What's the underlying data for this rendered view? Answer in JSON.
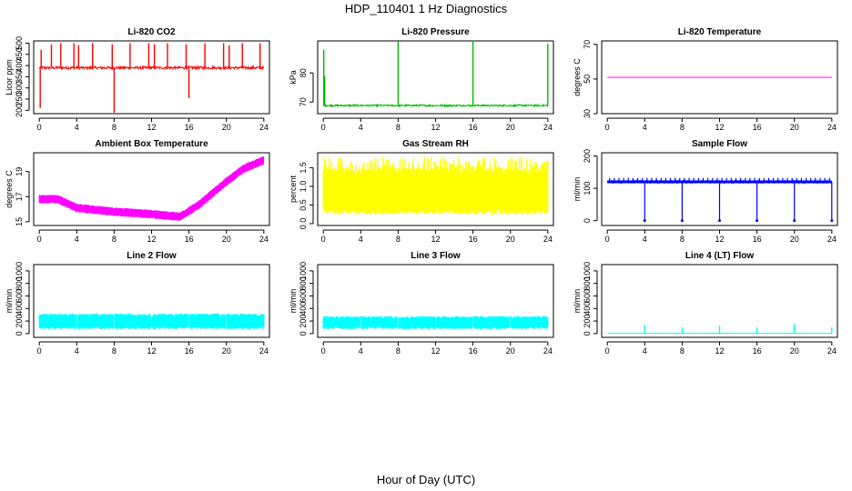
{
  "figure": {
    "title": "HDP_110401  1 Hz Diagnostics",
    "xlabel": "Hour of Day (UTC)"
  },
  "chart_data": [
    {
      "type": "line",
      "title": "Li-820 CO2",
      "ylabel": "Licor ppm",
      "color": "#ff0000",
      "x_ticks": [
        0,
        4,
        8,
        12,
        16,
        20,
        24
      ],
      "y_ticks": [
        200,
        250,
        300,
        350,
        400,
        450,
        500
      ],
      "ylim": [
        185,
        510
      ],
      "baseline": 390,
      "noise": 6,
      "spikes": [
        {
          "x": 0.1,
          "y": 210
        },
        {
          "x": 0.2,
          "y": 470
        },
        {
          "x": 1.3,
          "y": 495
        },
        {
          "x": 2.3,
          "y": 500
        },
        {
          "x": 3.7,
          "y": 500
        },
        {
          "x": 4.2,
          "y": 490
        },
        {
          "x": 5.7,
          "y": 500
        },
        {
          "x": 7.8,
          "y": 495
        },
        {
          "x": 8.0,
          "y": 190
        },
        {
          "x": 9.7,
          "y": 500
        },
        {
          "x": 11.7,
          "y": 500
        },
        {
          "x": 12.3,
          "y": 495
        },
        {
          "x": 13.7,
          "y": 500
        },
        {
          "x": 15.7,
          "y": 495
        },
        {
          "x": 16.0,
          "y": 255
        },
        {
          "x": 17.7,
          "y": 500
        },
        {
          "x": 19.7,
          "y": 500
        },
        {
          "x": 20.3,
          "y": 490
        },
        {
          "x": 21.7,
          "y": 500
        },
        {
          "x": 23.6,
          "y": 500
        }
      ]
    },
    {
      "type": "line",
      "title": "Li-820 Pressure",
      "ylabel": "kPa",
      "color": "#00bb00",
      "x_ticks": [
        0,
        4,
        8,
        12,
        16,
        20,
        24
      ],
      "y_ticks": [
        70,
        80
      ],
      "ylim": [
        66,
        91
      ],
      "baseline": 68.8,
      "noise": 0.3,
      "spikes": [
        {
          "x": 0.05,
          "y": 88
        },
        {
          "x": 0.15,
          "y": 79
        },
        {
          "x": 8.0,
          "y": 91
        },
        {
          "x": 16.0,
          "y": 91
        },
        {
          "x": 24.0,
          "y": 90
        }
      ]
    },
    {
      "type": "line",
      "title": "Li-820 Temperature",
      "ylabel": "degrees C",
      "color": "#ff00ff",
      "x_ticks": [
        0,
        4,
        8,
        12,
        16,
        20,
        24
      ],
      "y_ticks": [
        30,
        50,
        70
      ],
      "ylim": [
        30,
        72
      ],
      "baseline": 51,
      "noise": 0,
      "spikes": []
    },
    {
      "type": "line",
      "title": "Ambient Box Temperature",
      "ylabel": "degrees C",
      "color": "#ff00ff",
      "x_ticks": [
        0,
        4,
        8,
        12,
        16,
        20,
        24
      ],
      "y_ticks": [
        15,
        17,
        19
      ],
      "ylim": [
        14.7,
        20.5
      ],
      "trend": [
        {
          "x": 0,
          "y": 16.8
        },
        {
          "x": 2,
          "y": 16.8
        },
        {
          "x": 4,
          "y": 16.1
        },
        {
          "x": 8,
          "y": 15.8
        },
        {
          "x": 12,
          "y": 15.6
        },
        {
          "x": 15,
          "y": 15.4
        },
        {
          "x": 17,
          "y": 16.3
        },
        {
          "x": 20,
          "y": 18.2
        },
        {
          "x": 22,
          "y": 19.3
        },
        {
          "x": 24,
          "y": 19.9
        }
      ],
      "band": 0.35
    },
    {
      "type": "area",
      "title": "Gas Stream RH",
      "ylabel": "percent",
      "color": "#ffff00",
      "x_ticks": [
        0,
        4,
        8,
        12,
        16,
        20,
        24
      ],
      "y_ticks": [
        0.0,
        0.5,
        1.0,
        1.5
      ],
      "ylim": [
        -0.05,
        1.9
      ],
      "low": 0.35,
      "high": 1.5,
      "peak": 1.8
    },
    {
      "type": "line",
      "title": "Sample Flow",
      "ylabel": "ml/min",
      "color": "#0000ff",
      "x_ticks": [
        0,
        4,
        8,
        12,
        16,
        20,
        24
      ],
      "y_ticks": [
        0,
        100,
        200
      ],
      "ylim": [
        -15,
        210
      ],
      "baseline": 120,
      "noise": 4,
      "dips": [
        4,
        8,
        12,
        16,
        20,
        24
      ],
      "dip_value": 0
    },
    {
      "type": "area",
      "title": "Line 2 Flow",
      "ylabel": "ml/min",
      "color": "#00ffff",
      "x_ticks": [
        0,
        4,
        8,
        12,
        16,
        20,
        24
      ],
      "y_ticks": [
        0,
        200,
        400,
        600,
        800,
        1000
      ],
      "ylim": [
        -60,
        1100
      ],
      "low": 100,
      "high": 320,
      "gaps": [
        4,
        8,
        12,
        16,
        20
      ]
    },
    {
      "type": "area",
      "title": "Line 3 Flow",
      "ylabel": "ml/min",
      "color": "#00ffff",
      "x_ticks": [
        0,
        4,
        8,
        12,
        16,
        20,
        24
      ],
      "y_ticks": [
        0,
        200,
        400,
        600,
        800,
        1000
      ],
      "ylim": [
        -60,
        1100
      ],
      "low": 100,
      "high": 280,
      "gaps": [
        4,
        8,
        12,
        16,
        20
      ]
    },
    {
      "type": "line",
      "title": "Line 4 (LT) Flow",
      "ylabel": "ml/min",
      "color": "#00ffff",
      "x_ticks": [
        0,
        4,
        8,
        12,
        16,
        20,
        24
      ],
      "y_ticks": [
        0,
        200,
        400,
        600,
        800,
        1000
      ],
      "ylim": [
        -60,
        1100
      ],
      "baseline": 5,
      "noise": 0,
      "spikes": [
        {
          "x": 4,
          "y": 140
        },
        {
          "x": 8,
          "y": 100
        },
        {
          "x": 12,
          "y": 130
        },
        {
          "x": 16,
          "y": 100
        },
        {
          "x": 20,
          "y": 150
        },
        {
          "x": 24,
          "y": 100
        }
      ]
    }
  ]
}
